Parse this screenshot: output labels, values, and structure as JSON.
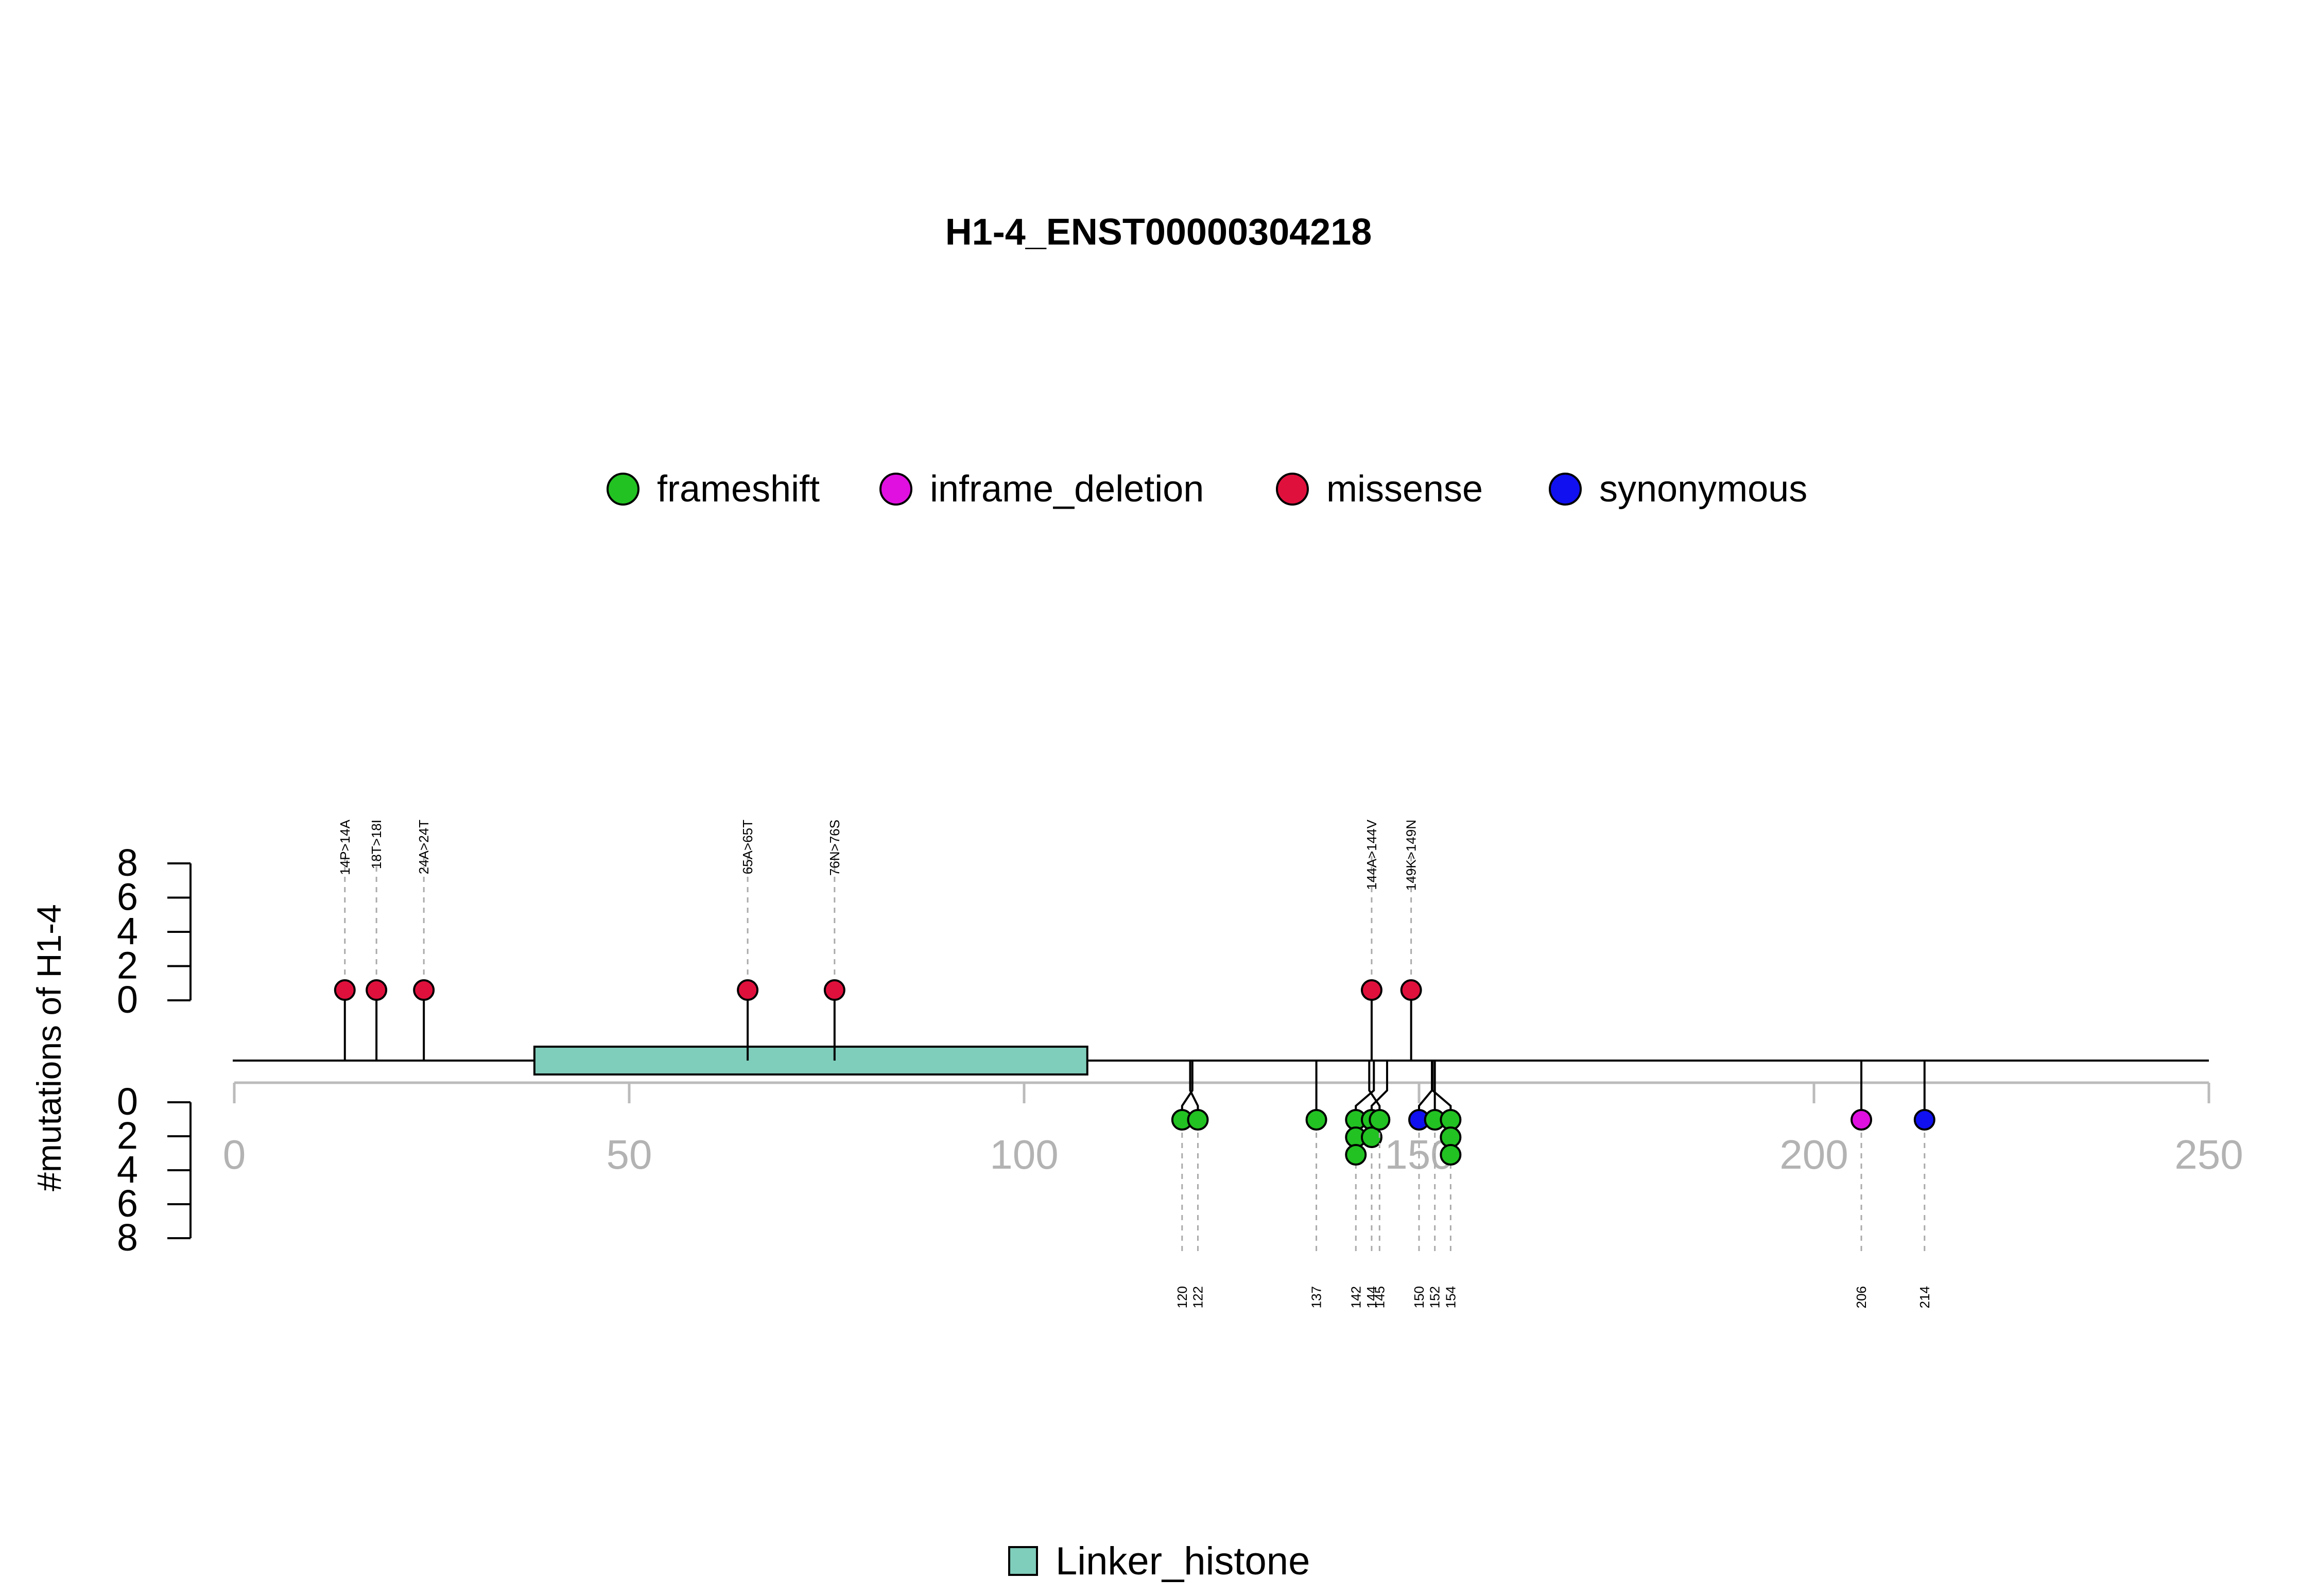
{
  "chart_data": {
    "type": "lollipop",
    "title": "H1-4_ENST00000304218",
    "ylabel": "#mutations of H1-4",
    "xlim": [
      0,
      250
    ],
    "x_ticks": [
      0,
      50,
      100,
      150,
      200,
      250
    ],
    "x_tick_labels": [
      "0",
      "50",
      "100",
      "150",
      "200",
      "250"
    ],
    "y_ticks_upper": [
      "8",
      "6",
      "4",
      "2",
      "0"
    ],
    "y_ticks_lower": [
      "0",
      "2",
      "4",
      "6",
      "8"
    ],
    "ylim": [
      0,
      8
    ],
    "legend": [
      {
        "label": "frameshift",
        "color": "#22c222"
      },
      {
        "label": "inframe_deletion",
        "color": "#e010e0"
      },
      {
        "label": "missense",
        "color": "#e0103c"
      },
      {
        "label": "synonymous",
        "color": "#1010f0"
      }
    ],
    "domains": [
      {
        "name": "Linker_histone",
        "start": 38,
        "end": 108,
        "color": "#7fcdbb"
      }
    ],
    "upper_mutations": [
      {
        "pos": 14,
        "label": "14P>14A",
        "type": "missense",
        "count": 1
      },
      {
        "pos": 18,
        "label": "18T>18I",
        "type": "missense",
        "count": 1
      },
      {
        "pos": 24,
        "label": "24A>24T",
        "type": "missense",
        "count": 1
      },
      {
        "pos": 65,
        "label": "65A>65T",
        "type": "missense",
        "count": 1
      },
      {
        "pos": 76,
        "label": "76N>76S",
        "type": "missense",
        "count": 1
      },
      {
        "pos": 144,
        "label": "144A>144V",
        "type": "missense",
        "count": 1
      },
      {
        "pos": 149,
        "label": "149K>149N",
        "type": "missense",
        "count": 1
      }
    ],
    "lower_mutations": [
      {
        "pos": 120,
        "label": "120",
        "type": "frameshift",
        "count": 1
      },
      {
        "pos": 122,
        "label": "122",
        "type": "frameshift",
        "count": 1
      },
      {
        "pos": 137,
        "label": "137",
        "type": "frameshift",
        "count": 1
      },
      {
        "pos": 142,
        "label": "142",
        "type": "frameshift",
        "count": 3
      },
      {
        "pos": 144,
        "label": "144",
        "type": "frameshift",
        "count": 2
      },
      {
        "pos": 145,
        "label": "145",
        "type": "frameshift",
        "count": 1
      },
      {
        "pos": 150,
        "label": "150",
        "type": "synonymous",
        "count": 1
      },
      {
        "pos": 152,
        "label": "152",
        "type": "frameshift",
        "count": 1
      },
      {
        "pos": 154,
        "label": "154",
        "type": "frameshift",
        "count": 3
      },
      {
        "pos": 206,
        "label": "206",
        "type": "inframe_deletion",
        "count": 1
      },
      {
        "pos": 214,
        "label": "214",
        "type": "synonymous",
        "count": 1
      }
    ]
  }
}
